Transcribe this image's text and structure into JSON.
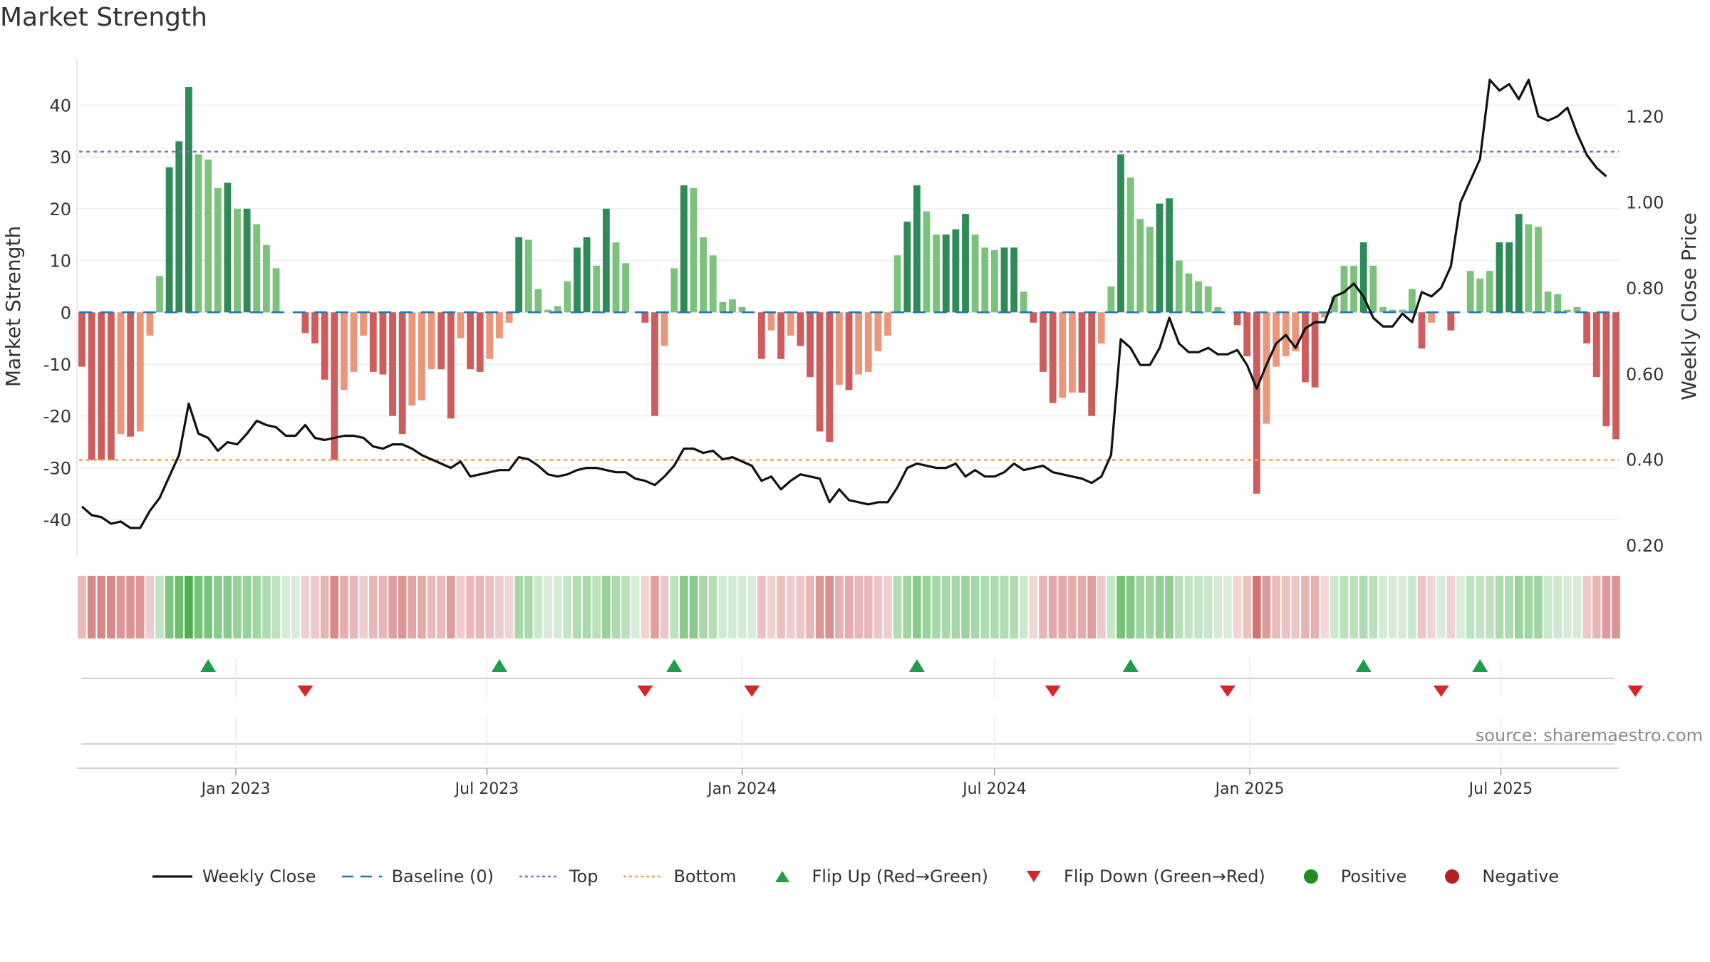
{
  "title": "Market Strength",
  "source": "source: sharemaestro.com",
  "colors": {
    "pos_dark": "#2e8b57",
    "pos_light": "#7cc27c",
    "neg_dark": "#cd5c5c",
    "neg_light": "#e9967a",
    "close_line": "#111111",
    "baseline": "#1f77b4",
    "top": "#9467bd",
    "bottom": "#ff9f4a",
    "flip_up": "#1e9e4a",
    "flip_down": "#d62728",
    "positive_marker": "#228b22",
    "negative_marker": "#b22222"
  },
  "chart_data": {
    "type": "bar",
    "ylabel": "Market Strength",
    "y2label": "Weekly Close Price",
    "ylim": [
      -47,
      49
    ],
    "y2lim": [
      0.175,
      1.335
    ],
    "yticks": [
      40,
      30,
      20,
      10,
      0,
      -10,
      -20,
      -30,
      -40
    ],
    "y2ticks": [
      "0.20",
      "0.40",
      "0.60",
      "0.80",
      "1.00",
      "1.20"
    ],
    "x_start": "2022-09-12",
    "x_ticks": [
      {
        "date": "2023-01-01",
        "label": "Jan 2023"
      },
      {
        "date": "2023-07-01",
        "label": "Jul 2023"
      },
      {
        "date": "2024-01-01",
        "label": "Jan 2024"
      },
      {
        "date": "2024-07-01",
        "label": "Jul 2024"
      },
      {
        "date": "2025-01-01",
        "label": "Jan 2025"
      },
      {
        "date": "2025-07-01",
        "label": "Jul 2025"
      }
    ],
    "baseline": 0,
    "top": 31,
    "bottom": -28.5,
    "grid": true,
    "legend_position": "bottom",
    "strength": [
      -10.5,
      -28.5,
      -28.5,
      -28.5,
      -23.5,
      -24,
      -23,
      -4.5,
      7,
      28,
      33,
      43.5,
      30.5,
      29.5,
      24,
      25,
      20,
      20,
      17,
      13,
      8.5,
      0,
      0,
      -4,
      -6,
      -13,
      -28.5,
      -15,
      -11.5,
      -4.5,
      -11.5,
      -12,
      -20,
      -23.5,
      -18,
      -17,
      -11,
      -11,
      -20.5,
      -5,
      -11,
      -11.5,
      -9,
      -5,
      -2,
      14.5,
      14,
      4.5,
      0.5,
      1.2,
      6,
      12.5,
      14.5,
      9,
      20,
      13.5,
      9.5,
      0,
      -2,
      -20,
      -6.5,
      8.5,
      24.5,
      24,
      14.5,
      11,
      2,
      2.5,
      1,
      0,
      -9,
      -3.5,
      -9,
      -4.5,
      -6.5,
      -12.5,
      -23,
      -25,
      -14,
      -15,
      -12,
      -11.5,
      -7.5,
      -4.5,
      11,
      17.5,
      24.5,
      19.5,
      15,
      15,
      16,
      19,
      15,
      12.5,
      12,
      12.5,
      12.5,
      4,
      -2,
      -11.5,
      -17.5,
      -16.5,
      -15.5,
      -15.5,
      -20,
      -6,
      5,
      30.5,
      26,
      18,
      16.5,
      21,
      22,
      10,
      7.5,
      6,
      5,
      1,
      0,
      -2.5,
      -8.5,
      -35,
      -21.5,
      -10.5,
      -8.5,
      -7.5,
      -13.5,
      -14.5,
      -1,
      3,
      9,
      9,
      13.5,
      9,
      1,
      0.5,
      0.5,
      4.5,
      -7,
      -2,
      0,
      -3.5,
      0,
      8,
      6.5,
      8,
      13.5,
      13.5,
      19,
      17,
      16.5,
      4,
      3.5,
      0.5,
      1,
      -6,
      -12.5,
      -22,
      -24.5
    ],
    "weekly_close": [
      0.29,
      0.27,
      0.265,
      0.25,
      0.255,
      0.24,
      0.24,
      0.28,
      0.31,
      0.36,
      0.41,
      0.53,
      0.46,
      0.45,
      0.42,
      0.44,
      0.435,
      0.46,
      0.49,
      0.48,
      0.475,
      0.455,
      0.455,
      0.48,
      0.45,
      0.445,
      0.45,
      0.455,
      0.455,
      0.45,
      0.43,
      0.425,
      0.435,
      0.435,
      0.425,
      0.41,
      0.4,
      0.39,
      0.38,
      0.395,
      0.36,
      0.365,
      0.37,
      0.375,
      0.375,
      0.405,
      0.4,
      0.385,
      0.365,
      0.36,
      0.365,
      0.375,
      0.38,
      0.38,
      0.375,
      0.37,
      0.37,
      0.355,
      0.35,
      0.34,
      0.36,
      0.385,
      0.425,
      0.425,
      0.415,
      0.42,
      0.4,
      0.405,
      0.395,
      0.385,
      0.35,
      0.36,
      0.33,
      0.35,
      0.365,
      0.36,
      0.355,
      0.3,
      0.33,
      0.305,
      0.3,
      0.295,
      0.3,
      0.3,
      0.335,
      0.38,
      0.39,
      0.385,
      0.38,
      0.38,
      0.39,
      0.36,
      0.375,
      0.36,
      0.36,
      0.37,
      0.39,
      0.375,
      0.38,
      0.385,
      0.37,
      0.365,
      0.36,
      0.355,
      0.345,
      0.36,
      0.41,
      0.68,
      0.66,
      0.62,
      0.62,
      0.66,
      0.73,
      0.67,
      0.65,
      0.65,
      0.66,
      0.645,
      0.645,
      0.655,
      0.62,
      0.565,
      0.62,
      0.67,
      0.69,
      0.66,
      0.705,
      0.72,
      0.72,
      0.78,
      0.79,
      0.81,
      0.78,
      0.73,
      0.71,
      0.71,
      0.74,
      0.72,
      0.79,
      0.78,
      0.8,
      0.85,
      1.0,
      1.05,
      1.1,
      1.285,
      1.26,
      1.275,
      1.24,
      1.285,
      1.2,
      1.19,
      1.2,
      1.22,
      1.16,
      1.11,
      1.08,
      1.06
    ],
    "heat_strip": "weekly strength intensity strip aligned with bars",
    "flip_up_dates": [
      "2022-12-12",
      "2023-07-10",
      "2023-11-13",
      "2024-05-06",
      "2024-10-07",
      "2025-03-24",
      "2025-06-16"
    ],
    "flip_down_dates": [
      "2023-02-20",
      "2023-10-23",
      "2024-01-08",
      "2024-08-12",
      "2024-12-16",
      "2025-05-19",
      "2025-10-06"
    ],
    "legend": [
      {
        "label": "Weekly Close",
        "symbol": "line"
      },
      {
        "label": "Baseline (0)",
        "symbol": "dash"
      },
      {
        "label": "Top",
        "symbol": "dot"
      },
      {
        "label": "Bottom",
        "symbol": "dot"
      },
      {
        "label": "Flip Up (Red→Green)",
        "symbol": "tri-up"
      },
      {
        "label": "Flip Down (Green→Red)",
        "symbol": "tri-down"
      },
      {
        "label": "Positive",
        "symbol": "circle"
      },
      {
        "label": "Negative",
        "symbol": "circle"
      }
    ]
  }
}
